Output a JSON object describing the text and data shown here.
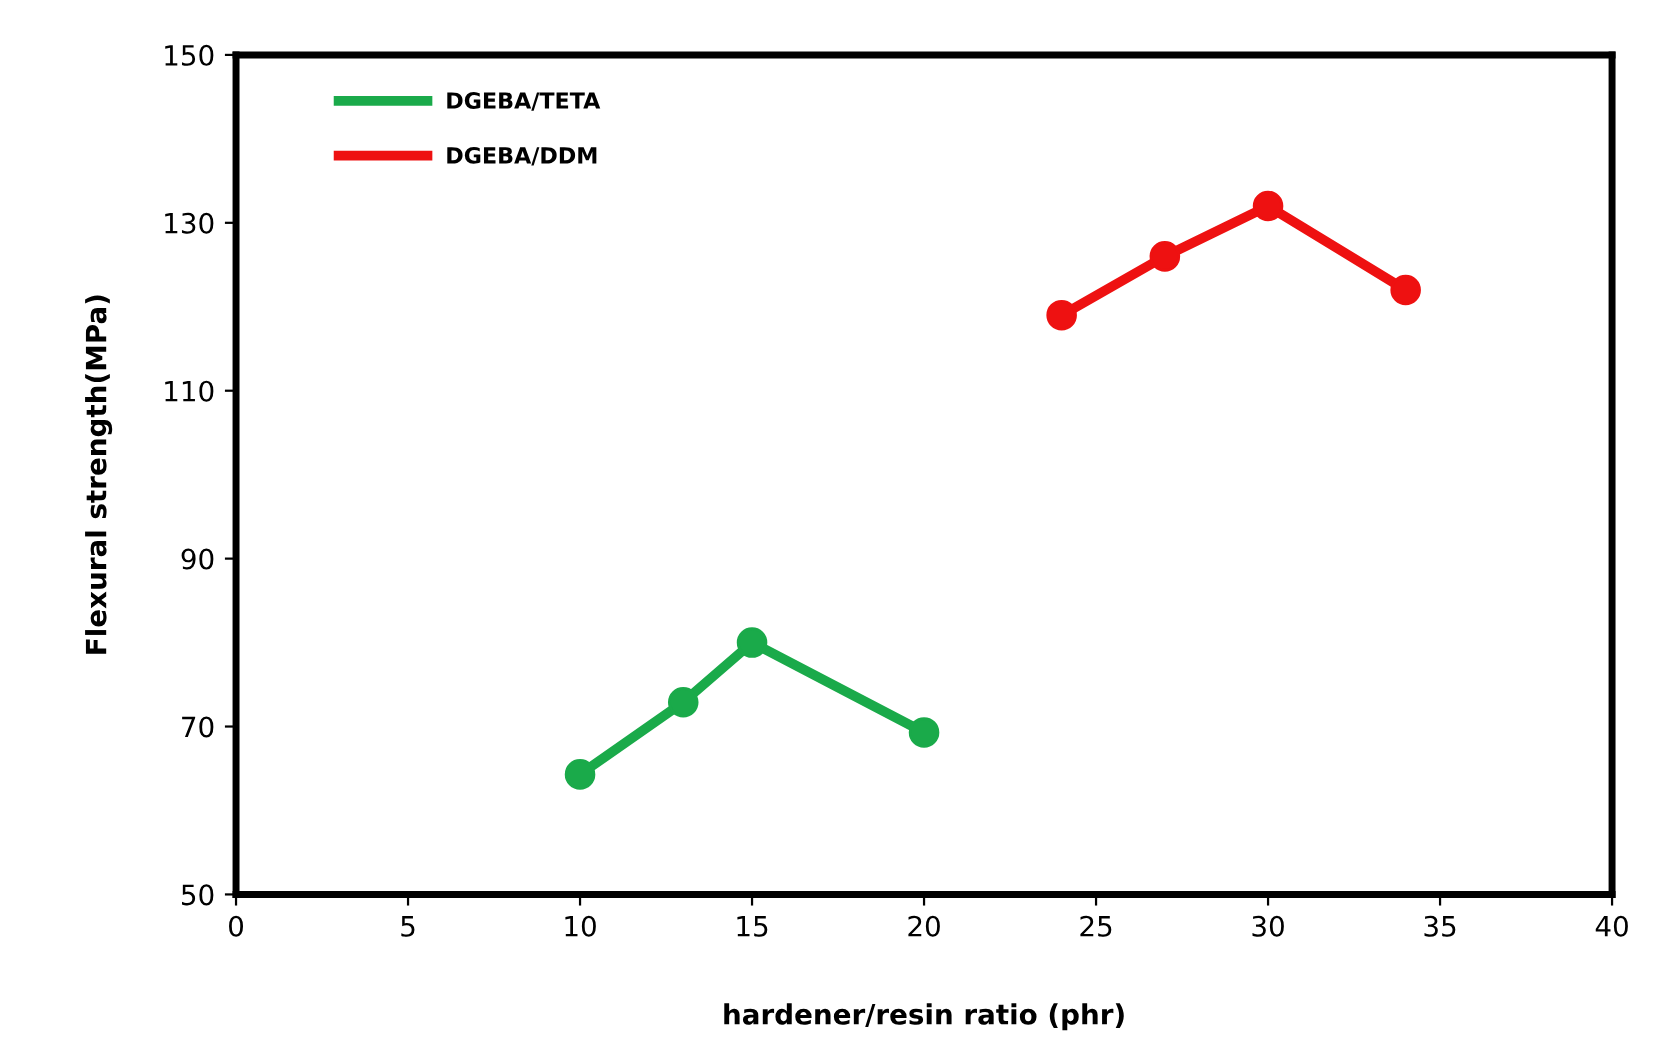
{
  "chart_data": {
    "type": "line",
    "xlabel": "hardener/resin ratio (phr)",
    "ylabel": "Flexural strength(MPa)",
    "xlim": [
      0,
      40
    ],
    "xticks": [
      0,
      5,
      10,
      15,
      20,
      25,
      30,
      35,
      40
    ],
    "ylim": [
      50,
      150
    ],
    "yticks": [
      50,
      70,
      90,
      110,
      130,
      150
    ],
    "grid": false,
    "legend": "top left",
    "marker": "circle",
    "line_style": "solid",
    "series": [
      {
        "name": "DGEBA/TETA",
        "color": "#1aaa4a",
        "x": [
          10,
          13,
          15,
          20
        ],
        "values": [
          64.3,
          72.9,
          80,
          69.3
        ]
      },
      {
        "name": "DGEBA/DDM",
        "color": "#ee1111",
        "x": [
          24,
          27,
          30,
          34
        ],
        "values": [
          119,
          126,
          132,
          122
        ]
      }
    ]
  }
}
